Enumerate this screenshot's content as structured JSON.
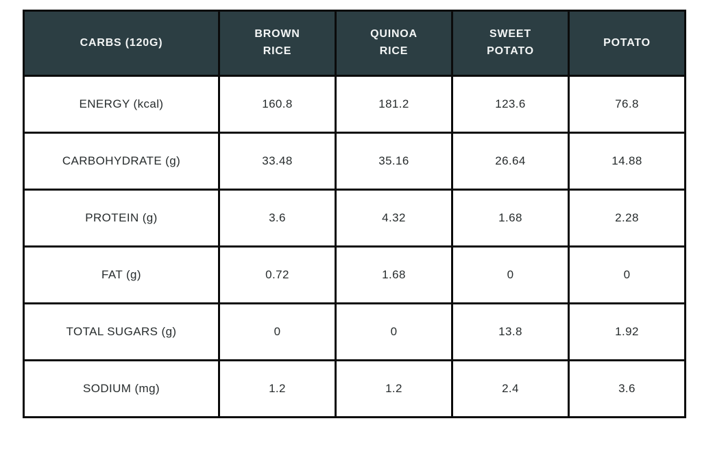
{
  "chart_data": {
    "type": "table",
    "title": "CARBS (120G)",
    "corner_header": "CARBS (120G)",
    "columns": [
      "BROWN\nRICE",
      "QUINOA\nRICE",
      "SWEET\nPOTATO",
      "POTATO"
    ],
    "rows": [
      {
        "label": "ENERGY (kcal)",
        "values": [
          "160.8",
          "181.2",
          "123.6",
          "76.8"
        ]
      },
      {
        "label": "CARBOHYDRATE (g)",
        "values": [
          "33.48",
          "35.16",
          "26.64",
          "14.88"
        ]
      },
      {
        "label": "PROTEIN (g)",
        "values": [
          "3.6",
          "4.32",
          "1.68",
          "2.28"
        ]
      },
      {
        "label": "FAT (g)",
        "values": [
          "0.72",
          "1.68",
          "0",
          "0"
        ]
      },
      {
        "label": "TOTAL SUGARS (g)",
        "values": [
          "0",
          "0",
          "13.8",
          "1.92"
        ]
      },
      {
        "label": "SODIUM (mg)",
        "values": [
          "1.2",
          "1.2",
          "2.4",
          "3.6"
        ]
      }
    ],
    "layout": {
      "serving_size_grams": 120,
      "grid": true,
      "header_position": "top"
    },
    "colors": {
      "header_bg": "#2c3e43",
      "header_text": "#f4f6f6",
      "body_text": "#272c2d",
      "border": "#0b0b0b",
      "page_bg": "#ffffff"
    }
  }
}
